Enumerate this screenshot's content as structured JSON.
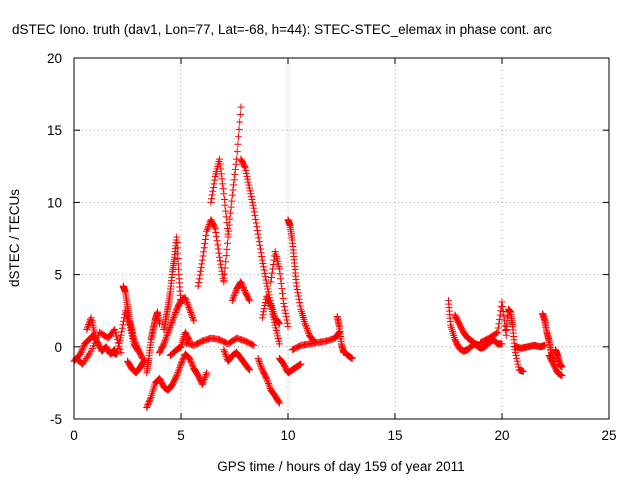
{
  "chart_data": {
    "type": "scatter",
    "title": "dSTEC Iono. truth (dav1, Lon=77, Lat=-68, h=44): STEC-STEC_elemax in phase cont. arc",
    "xlabel": "GPS time / hours of day 159 of year 2011",
    "ylabel": "dSTEC  / TECUs",
    "xlim": [
      0,
      25
    ],
    "ylim": [
      -5,
      20
    ],
    "x_ticks": [
      0,
      5,
      10,
      15,
      20,
      25
    ],
    "y_ticks": [
      -5,
      0,
      5,
      10,
      15,
      20
    ],
    "x_tick_labels": [
      "0",
      "5",
      "10",
      "15",
      "20",
      "25"
    ],
    "y_tick_labels": [
      "-5",
      "0",
      "5",
      "10",
      "15",
      "20"
    ],
    "grid": true,
    "marker": "+",
    "color": "#ff0000",
    "arcs": [
      {
        "x": [
          0.0,
          0.3,
          0.5,
          0.7,
          0.9,
          1.1,
          1.3,
          1.5,
          1.7,
          1.9
        ],
        "y": [
          -1.0,
          -0.5,
          0.2,
          0.5,
          0.8,
          0.3,
          -0.3,
          0.0,
          -0.5,
          -0.2
        ]
      },
      {
        "x": [
          0.1,
          0.4,
          0.8,
          1.2,
          1.6,
          1.9,
          2.2
        ],
        "y": [
          -0.8,
          -1.2,
          -0.3,
          1.0,
          0.6,
          1.2,
          -0.4
        ]
      },
      {
        "x": [
          0.6,
          0.8,
          1.0
        ],
        "y": [
          1.2,
          2.0,
          0.8
        ]
      },
      {
        "x": [
          1.8,
          2.0,
          2.2,
          2.4,
          2.6,
          2.8,
          3.0
        ],
        "y": [
          -0.4,
          -0.5,
          0.8,
          2.5,
          1.5,
          0.2,
          -0.3
        ]
      },
      {
        "x": [
          2.3,
          2.4,
          2.5,
          2.6,
          2.7,
          2.8,
          3.0,
          3.2
        ],
        "y": [
          4.2,
          3.8,
          2.8,
          1.8,
          1.2,
          0.5,
          -0.2,
          -0.8
        ]
      },
      {
        "x": [
          2.5,
          2.7,
          2.9,
          3.1,
          3.3
        ],
        "y": [
          -1.0,
          -1.5,
          -1.8,
          -1.4,
          -0.9
        ]
      },
      {
        "x": [
          3.4,
          3.6,
          3.8,
          4.0,
          4.2,
          4.4,
          4.6,
          4.8,
          5.0
        ],
        "y": [
          -4.2,
          -3.5,
          -2.5,
          -2.2,
          -2.8,
          -3.0,
          -2.6,
          -2.0,
          -1.2
        ]
      },
      {
        "x": [
          3.4,
          3.5,
          3.6,
          3.7,
          3.8,
          3.9,
          4.0
        ],
        "y": [
          -1.8,
          -0.8,
          0.5,
          1.2,
          1.9,
          2.4,
          1.6
        ]
      },
      {
        "x": [
          4.2,
          4.3,
          4.4,
          4.5,
          4.6,
          4.7,
          4.8,
          4.9,
          5.0
        ],
        "y": [
          1.2,
          2.0,
          2.8,
          3.8,
          5.2,
          6.2,
          7.6,
          5.0,
          3.0
        ]
      },
      {
        "x": [
          4.0,
          4.2,
          4.4,
          4.6,
          4.8,
          5.0,
          5.2,
          5.4,
          5.6
        ],
        "y": [
          -0.4,
          0.2,
          1.0,
          1.8,
          2.6,
          3.2,
          3.4,
          2.6,
          1.8
        ]
      },
      {
        "x": [
          4.5,
          4.8,
          5.0,
          5.2,
          5.4
        ],
        "y": [
          -0.6,
          -0.2,
          0.0,
          1.0,
          0.4
        ]
      },
      {
        "x": [
          5.0,
          5.2,
          5.4,
          5.6,
          5.8,
          6.0,
          6.2
        ],
        "y": [
          -1.2,
          -0.5,
          -0.8,
          -1.5,
          -2.0,
          -2.6,
          -1.8
        ]
      },
      {
        "x": [
          5.2,
          5.6,
          6.0,
          6.4,
          6.8,
          7.2,
          7.6,
          8.0,
          8.4
        ],
        "y": [
          0.3,
          0.1,
          0.4,
          0.6,
          0.5,
          0.2,
          0.6,
          0.4,
          0.1
        ]
      },
      {
        "x": [
          5.8,
          6.0,
          6.2,
          6.4,
          6.6,
          6.8,
          7.0
        ],
        "y": [
          4.2,
          6.0,
          8.0,
          8.8,
          8.2,
          6.2,
          4.5
        ]
      },
      {
        "x": [
          6.4,
          6.6,
          6.8,
          7.0,
          7.2
        ],
        "y": [
          10.0,
          11.8,
          13.0,
          10.6,
          7.8
        ]
      },
      {
        "x": [
          7.0,
          7.2,
          7.4,
          7.6,
          7.8
        ],
        "y": [
          4.6,
          7.6,
          10.5,
          13.0,
          16.6
        ]
      },
      {
        "x": [
          7.4,
          7.6,
          7.8,
          8.0,
          8.2
        ],
        "y": [
          3.2,
          4.0,
          4.5,
          3.8,
          3.2
        ]
      },
      {
        "x": [
          7.8,
          8.0,
          8.2,
          8.4,
          8.6,
          8.8,
          9.0,
          9.2,
          9.4,
          9.6
        ],
        "y": [
          13.0,
          12.4,
          11.0,
          9.6,
          7.8,
          6.0,
          4.4,
          3.0,
          2.0,
          1.6
        ]
      },
      {
        "x": [
          7.0,
          7.2,
          7.4,
          7.6,
          7.8,
          8.0,
          8.2
        ],
        "y": [
          -0.2,
          -1.0,
          -0.6,
          -0.4,
          -0.8,
          -1.2,
          -1.6
        ]
      },
      {
        "x": [
          8.6,
          8.8,
          9.0,
          9.2,
          9.4,
          9.6
        ],
        "y": [
          -0.8,
          -1.6,
          -2.2,
          -3.0,
          -3.4,
          -3.9
        ]
      },
      {
        "x": [
          8.8,
          9.0,
          9.2,
          9.4,
          9.6
        ],
        "y": [
          2.0,
          3.5,
          2.8,
          1.5,
          0.2
        ]
      },
      {
        "x": [
          9.2,
          9.4,
          9.6,
          9.8,
          10.0
        ],
        "y": [
          4.5,
          6.6,
          5.4,
          3.0,
          1.4
        ]
      },
      {
        "x": [
          9.6,
          9.8,
          10.0,
          10.2,
          10.4,
          10.6
        ],
        "y": [
          -0.8,
          -1.2,
          -1.8,
          -1.6,
          -1.4,
          -1.2
        ]
      },
      {
        "x": [
          10.0,
          10.1,
          10.2,
          10.3,
          10.4,
          10.6,
          10.8,
          11.0,
          11.2
        ],
        "y": [
          8.8,
          8.4,
          7.4,
          5.8,
          4.2,
          2.6,
          1.6,
          0.8,
          0.4
        ]
      },
      {
        "x": [
          10.2,
          10.6,
          11.0,
          11.4,
          11.8,
          12.2,
          12.4
        ],
        "y": [
          -0.2,
          0.1,
          0.2,
          0.3,
          0.4,
          0.6,
          1.0
        ]
      },
      {
        "x": [
          12.3,
          12.4,
          12.5,
          12.6
        ],
        "y": [
          2.1,
          1.4,
          0.2,
          -0.4
        ]
      },
      {
        "x": [
          12.6,
          12.8,
          13.0
        ],
        "y": [
          -0.3,
          -0.6,
          -0.8
        ]
      },
      {
        "x": [
          17.5,
          17.6,
          17.8,
          18.0,
          18.2,
          18.4,
          18.6,
          18.8,
          19.0
        ],
        "y": [
          3.2,
          1.5,
          0.5,
          -0.1,
          -0.3,
          -0.2,
          0.1,
          0.2,
          0.0
        ]
      },
      {
        "x": [
          17.8,
          18.0,
          18.2,
          18.4,
          18.6,
          18.8,
          19.0,
          19.2,
          19.4,
          19.6,
          19.8,
          20.0
        ],
        "y": [
          2.2,
          1.6,
          1.0,
          0.6,
          0.4,
          0.1,
          -0.1,
          0.0,
          0.3,
          0.5,
          0.2,
          0.2
        ]
      },
      {
        "x": [
          19.0,
          19.4,
          19.8,
          20.0,
          20.2
        ],
        "y": [
          0.3,
          0.6,
          1.0,
          3.1,
          0.8
        ]
      },
      {
        "x": [
          20.2,
          20.3,
          20.4,
          20.5,
          20.6,
          20.8,
          21.0
        ],
        "y": [
          1.2,
          2.6,
          2.4,
          1.4,
          -0.2,
          -1.6,
          -1.7
        ]
      },
      {
        "x": [
          20.6,
          20.9,
          21.2,
          21.5,
          21.8,
          22.0
        ],
        "y": [
          0.0,
          -0.1,
          0.0,
          0.1,
          0.0,
          0.1
        ]
      },
      {
        "x": [
          21.9,
          22.0,
          22.1,
          22.2,
          22.3,
          22.4
        ],
        "y": [
          2.3,
          1.8,
          1.0,
          0.4,
          -0.4,
          -1.0
        ]
      },
      {
        "x": [
          22.2,
          22.4,
          22.6,
          22.8
        ],
        "y": [
          -0.6,
          -1.2,
          -1.8,
          -2.0
        ]
      },
      {
        "x": [
          22.5,
          22.6,
          22.7,
          22.8
        ],
        "y": [
          -0.2,
          -0.6,
          -1.2,
          -1.4
        ]
      }
    ]
  }
}
